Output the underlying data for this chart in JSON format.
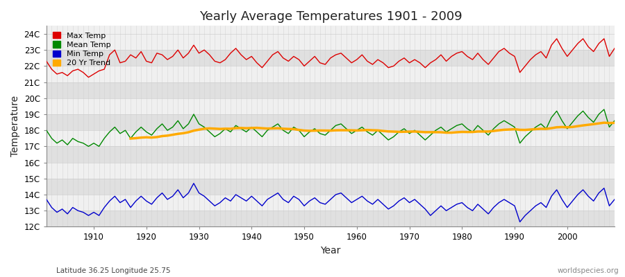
{
  "title": "Yearly Average Temperatures 1901 - 2009",
  "xlabel": "Year",
  "ylabel": "Temperature",
  "subtitle_left": "Latitude 36.25 Longitude 25.75",
  "subtitle_right": "worldspecies.org",
  "years": [
    1901,
    1902,
    1903,
    1904,
    1905,
    1906,
    1907,
    1908,
    1909,
    1910,
    1911,
    1912,
    1913,
    1914,
    1915,
    1916,
    1917,
    1918,
    1919,
    1920,
    1921,
    1922,
    1923,
    1924,
    1925,
    1926,
    1927,
    1928,
    1929,
    1930,
    1931,
    1932,
    1933,
    1934,
    1935,
    1936,
    1937,
    1938,
    1939,
    1940,
    1941,
    1942,
    1943,
    1944,
    1945,
    1946,
    1947,
    1948,
    1949,
    1950,
    1951,
    1952,
    1953,
    1954,
    1955,
    1956,
    1957,
    1958,
    1959,
    1960,
    1961,
    1962,
    1963,
    1964,
    1965,
    1966,
    1967,
    1968,
    1969,
    1970,
    1971,
    1972,
    1973,
    1974,
    1975,
    1976,
    1977,
    1978,
    1979,
    1980,
    1981,
    1982,
    1983,
    1984,
    1985,
    1986,
    1987,
    1988,
    1989,
    1990,
    1991,
    1992,
    1993,
    1994,
    1995,
    1996,
    1997,
    1998,
    1999,
    2000,
    2001,
    2002,
    2003,
    2004,
    2005,
    2006,
    2007,
    2008,
    2009
  ],
  "max_temp": [
    22.3,
    21.8,
    21.5,
    21.6,
    21.4,
    21.7,
    21.8,
    21.6,
    21.3,
    21.5,
    21.7,
    21.8,
    22.7,
    23.0,
    22.2,
    22.3,
    22.7,
    22.5,
    22.9,
    22.3,
    22.2,
    22.8,
    22.7,
    22.4,
    22.6,
    23.0,
    22.5,
    22.8,
    23.3,
    22.8,
    23.0,
    22.7,
    22.3,
    22.2,
    22.4,
    22.8,
    23.1,
    22.7,
    22.4,
    22.6,
    22.2,
    21.9,
    22.3,
    22.7,
    22.9,
    22.5,
    22.3,
    22.6,
    22.4,
    22.0,
    22.3,
    22.6,
    22.2,
    22.1,
    22.5,
    22.7,
    22.8,
    22.5,
    22.2,
    22.4,
    22.7,
    22.3,
    22.1,
    22.4,
    22.2,
    21.9,
    22.0,
    22.3,
    22.5,
    22.2,
    22.4,
    22.2,
    21.9,
    22.2,
    22.4,
    22.7,
    22.3,
    22.6,
    22.8,
    22.9,
    22.6,
    22.4,
    22.8,
    22.4,
    22.1,
    22.5,
    22.9,
    23.1,
    22.8,
    22.6,
    21.6,
    22.0,
    22.4,
    22.7,
    22.9,
    22.5,
    23.3,
    23.7,
    23.1,
    22.6,
    23.0,
    23.4,
    23.7,
    23.2,
    22.9,
    23.4,
    23.7,
    22.6,
    23.1
  ],
  "mean_temp": [
    18.0,
    17.5,
    17.2,
    17.4,
    17.1,
    17.5,
    17.3,
    17.2,
    17.0,
    17.2,
    17.0,
    17.5,
    17.9,
    18.2,
    17.8,
    18.0,
    17.5,
    17.9,
    18.2,
    17.9,
    17.7,
    18.1,
    18.4,
    18.0,
    18.2,
    18.6,
    18.1,
    18.4,
    19.0,
    18.4,
    18.2,
    17.9,
    17.6,
    17.8,
    18.1,
    17.9,
    18.3,
    18.1,
    17.9,
    18.2,
    17.9,
    17.6,
    18.0,
    18.2,
    18.4,
    18.0,
    17.8,
    18.2,
    18.0,
    17.6,
    17.9,
    18.1,
    17.8,
    17.7,
    18.0,
    18.3,
    18.4,
    18.1,
    17.8,
    18.0,
    18.2,
    17.9,
    17.7,
    18.0,
    17.7,
    17.4,
    17.6,
    17.9,
    18.1,
    17.8,
    18.0,
    17.7,
    17.4,
    17.7,
    18.0,
    18.2,
    17.9,
    18.1,
    18.3,
    18.4,
    18.1,
    17.9,
    18.3,
    18.0,
    17.7,
    18.1,
    18.4,
    18.6,
    18.4,
    18.2,
    17.2,
    17.6,
    17.9,
    18.2,
    18.4,
    18.1,
    18.8,
    19.2,
    18.6,
    18.1,
    18.5,
    18.9,
    19.2,
    18.8,
    18.5,
    19.0,
    19.3,
    18.2,
    18.6
  ],
  "min_temp": [
    13.7,
    13.2,
    12.9,
    13.1,
    12.8,
    13.2,
    13.0,
    12.9,
    12.7,
    12.9,
    12.7,
    13.2,
    13.6,
    13.9,
    13.5,
    13.7,
    13.2,
    13.6,
    13.9,
    13.6,
    13.4,
    13.8,
    14.1,
    13.7,
    13.9,
    14.3,
    13.8,
    14.1,
    14.7,
    14.1,
    13.9,
    13.6,
    13.3,
    13.5,
    13.8,
    13.6,
    14.0,
    13.8,
    13.6,
    13.9,
    13.6,
    13.3,
    13.7,
    13.9,
    14.1,
    13.7,
    13.5,
    13.9,
    13.7,
    13.3,
    13.6,
    13.8,
    13.5,
    13.4,
    13.7,
    14.0,
    14.1,
    13.8,
    13.5,
    13.7,
    13.9,
    13.6,
    13.4,
    13.7,
    13.4,
    13.1,
    13.3,
    13.6,
    13.8,
    13.5,
    13.7,
    13.4,
    13.1,
    12.7,
    13.0,
    13.3,
    13.0,
    13.2,
    13.4,
    13.5,
    13.2,
    13.0,
    13.4,
    13.1,
    12.8,
    13.2,
    13.5,
    13.7,
    13.5,
    13.3,
    12.3,
    12.7,
    13.0,
    13.3,
    13.5,
    13.2,
    13.9,
    14.3,
    13.7,
    13.2,
    13.6,
    14.0,
    14.3,
    13.9,
    13.6,
    14.1,
    14.4,
    13.3,
    13.7
  ],
  "max_color": "#dd0000",
  "mean_color": "#008800",
  "min_color": "#0000cc",
  "trend_color": "#ffaa00",
  "fig_bg_color": "#ffffff",
  "plot_bg_light": "#f0f0f0",
  "plot_bg_dark": "#e0e0e0",
  "grid_color": "#cccccc",
  "ylim": [
    12.0,
    24.5
  ],
  "yticks": [
    12,
    13,
    14,
    15,
    16,
    17,
    18,
    19,
    20,
    21,
    22,
    23,
    24
  ],
  "xlim_min": 1901,
  "xlim_max": 2009,
  "xticks": [
    1910,
    1920,
    1930,
    1940,
    1950,
    1960,
    1970,
    1980,
    1990,
    2000
  ],
  "legend_labels": [
    "Max Temp",
    "Mean Temp",
    "Min Temp",
    "20 Yr Trend"
  ],
  "legend_colors": [
    "#dd0000",
    "#008800",
    "#0000cc",
    "#ffaa00"
  ]
}
